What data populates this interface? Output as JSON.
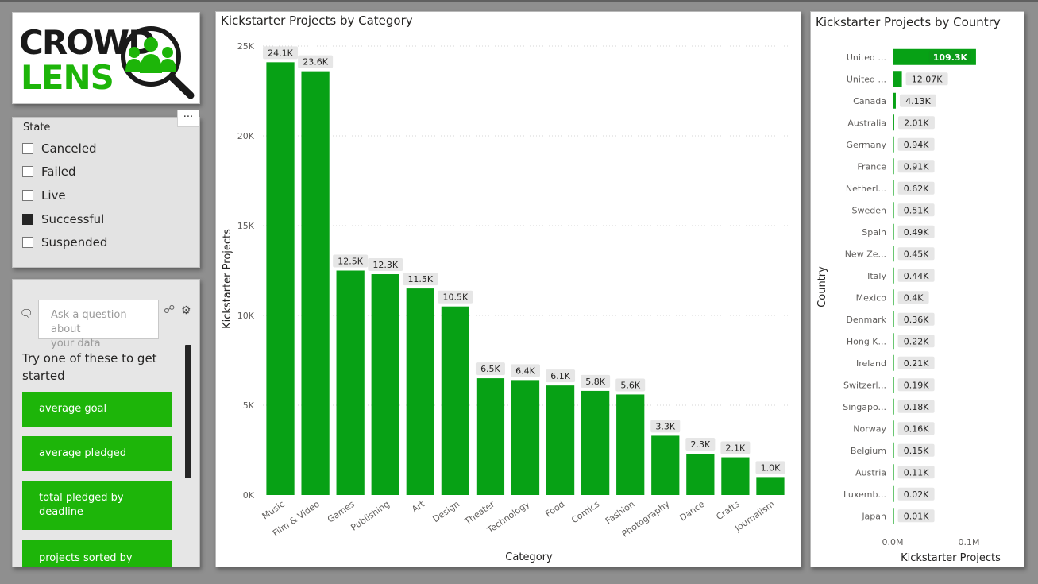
{
  "logo": {
    "line1": "CROWD",
    "line2": "LENS",
    "colors": {
      "dark": "#1a1a1a",
      "green": "#1db509"
    }
  },
  "state_slicer": {
    "title": "State",
    "more_label": "···",
    "items": [
      {
        "label": "Canceled",
        "checked": false
      },
      {
        "label": "Failed",
        "checked": false
      },
      {
        "label": "Live",
        "checked": false
      },
      {
        "label": "Successful",
        "checked": true
      },
      {
        "label": "Suspended",
        "checked": false
      }
    ]
  },
  "qa": {
    "placeholder_line1": "Ask a question about",
    "placeholder_line2": "your data",
    "prompt": "Try one of these to get started",
    "suggestions": [
      {
        "label_line1": "average goal",
        "label_line2": ""
      },
      {
        "label_line1": "average pledged",
        "label_line2": ""
      },
      {
        "label_line1": "total pledged by",
        "label_line2": "deadline"
      },
      {
        "label_line1": "projects sorted by",
        "label_line2": ""
      }
    ]
  },
  "chart_data": [
    {
      "type": "bar",
      "title": "Kickstarter Projects by Category",
      "xlabel": "Category",
      "ylabel": "Kickstarter Projects",
      "ylim": [
        0,
        25000
      ],
      "yticks": [
        0,
        5000,
        10000,
        15000,
        20000,
        25000
      ],
      "ytick_labels": [
        "0K",
        "5K",
        "10K",
        "15K",
        "20K",
        "25K"
      ],
      "color": "#07a115",
      "categories": [
        "Music",
        "Film & Video",
        "Games",
        "Publishing",
        "Art",
        "Design",
        "Theater",
        "Technology",
        "Food",
        "Comics",
        "Fashion",
        "Photography",
        "Dance",
        "Crafts",
        "Journalism"
      ],
      "values": [
        24100,
        23600,
        12500,
        12300,
        11500,
        10500,
        6500,
        6400,
        6100,
        5800,
        5600,
        3300,
        2300,
        2100,
        1000
      ],
      "data_labels": [
        "24.1K",
        "23.6K",
        "12.5K",
        "12.3K",
        "11.5K",
        "10.5K",
        "6.5K",
        "6.4K",
        "6.1K",
        "5.8K",
        "5.6K",
        "3.3K",
        "2.3K",
        "2.1K",
        "1.0K"
      ]
    },
    {
      "type": "bar",
      "orientation": "horizontal",
      "title": "Kickstarter Projects by Country",
      "xlabel": "Kickstarter Projects",
      "ylabel": "Country",
      "xlim": [
        0,
        100000
      ],
      "xticks": [
        0,
        100000
      ],
      "xtick_labels": [
        "0.0M",
        "0.1M"
      ],
      "color": "#07a115",
      "categories": [
        "United ...",
        "United ...",
        "Canada",
        "Australia",
        "Germany",
        "France",
        "Netherl...",
        "Sweden",
        "Spain",
        "New Ze...",
        "Italy",
        "Mexico",
        "Denmark",
        "Hong K...",
        "Ireland",
        "Switzerl...",
        "Singapo...",
        "Norway",
        "Belgium",
        "Austria",
        "Luxemb...",
        "Japan"
      ],
      "values": [
        109300,
        12070,
        4130,
        2010,
        940,
        910,
        620,
        510,
        490,
        450,
        440,
        400,
        360,
        220,
        210,
        190,
        180,
        160,
        150,
        110,
        20,
        10
      ],
      "data_labels": [
        "109.3K",
        "12.07K",
        "4.13K",
        "2.01K",
        "0.94K",
        "0.91K",
        "0.62K",
        "0.51K",
        "0.49K",
        "0.45K",
        "0.44K",
        "0.4K",
        "0.36K",
        "0.22K",
        "0.21K",
        "0.19K",
        "0.18K",
        "0.16K",
        "0.15K",
        "0.11K",
        "0.02K",
        "0.01K"
      ]
    }
  ]
}
